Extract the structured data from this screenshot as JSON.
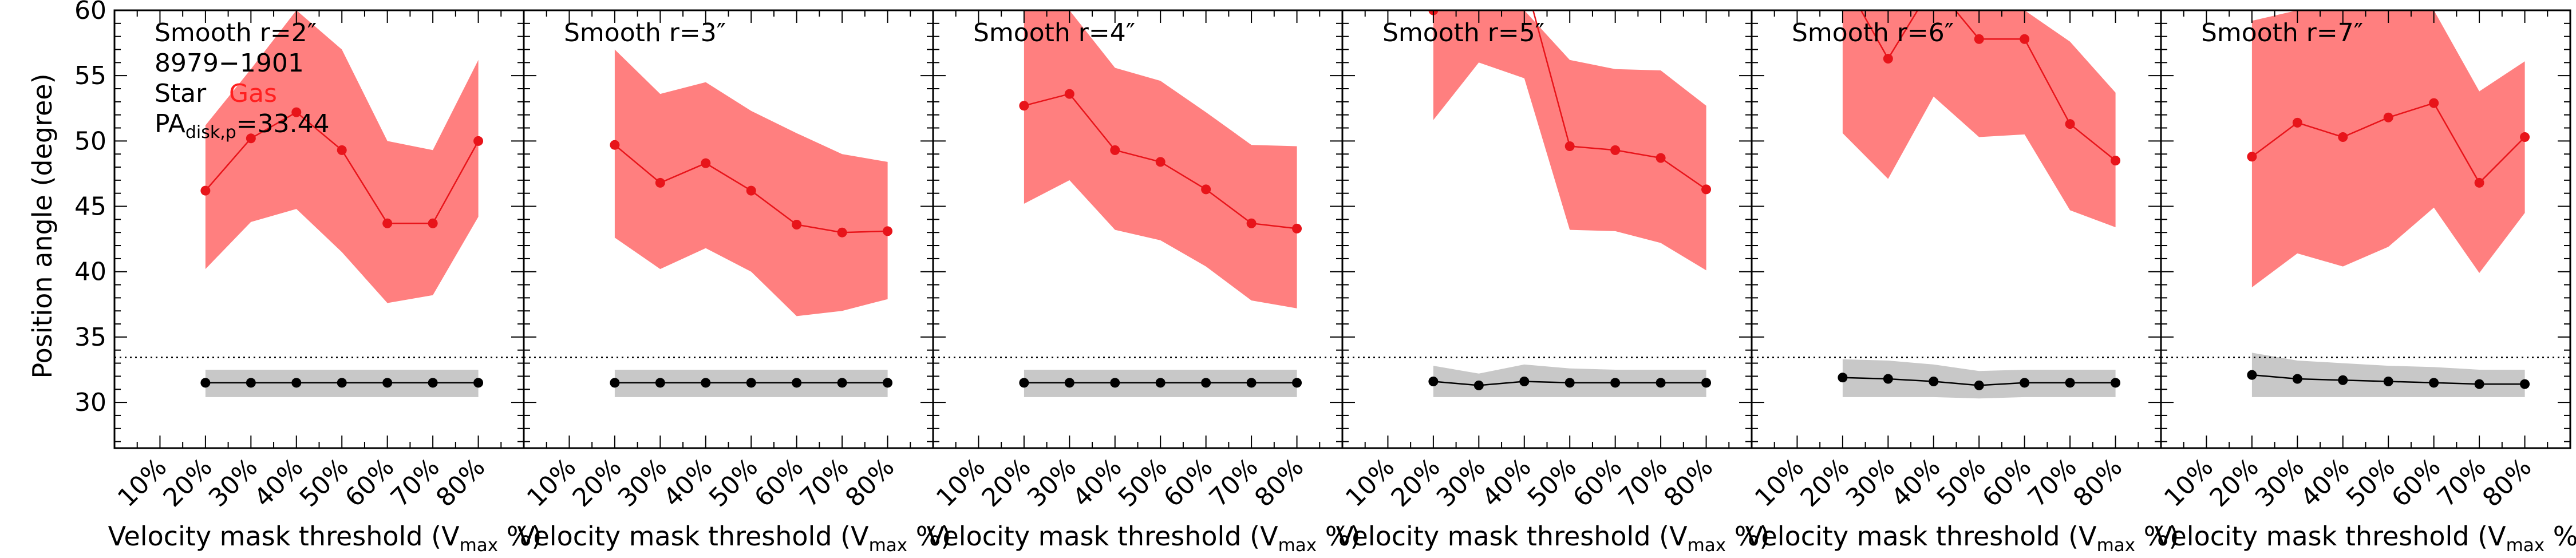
{
  "figure": {
    "ylabel": "Position angle (degree)",
    "ytick_labels": [
      "30",
      "35",
      "40",
      "45",
      "50",
      "55",
      "60"
    ],
    "xtick_labels": [
      "10%",
      "20%",
      "30%",
      "40%",
      "50%",
      "60%",
      "70%",
      "80%"
    ],
    "xlabel_prefix": "Velocity mask threshold (V",
    "xlabel_sub": "max",
    "xlabel_suffix": " %)",
    "legend": {
      "galaxy_id": "8979−1901",
      "star_label": "Star",
      "gas_label": "Gas",
      "pa_prefix": "PA",
      "pa_sub": "disk,p",
      "pa_value": "=33.44"
    }
  },
  "colors": {
    "gas_line": "#e8141a",
    "gas_band": "#ff7f7f",
    "star_line": "#000000",
    "star_band": "#c8c8c8",
    "reference_line": "#000000"
  },
  "chart_data": [
    {
      "type": "line",
      "title": "Smooth r=2″",
      "xlabel": "Velocity mask threshold (Vmax %)",
      "ylabel": "Position angle (degree)",
      "ylim": [
        26.5,
        60
      ],
      "xlim": [
        0,
        90
      ],
      "x": [
        20,
        30,
        40,
        50,
        60,
        70,
        80
      ],
      "reference_line": 33.44,
      "series": [
        {
          "name": "Gas",
          "values": [
            46.2,
            50.2,
            52.2,
            49.3,
            43.7,
            43.7,
            50.0
          ],
          "lower": [
            40.2,
            43.8,
            44.8,
            41.5,
            37.6,
            38.2,
            44.2
          ],
          "upper": [
            51.2,
            55.5,
            60.0,
            57.0,
            50.0,
            49.3,
            56.2
          ]
        },
        {
          "name": "Star",
          "values": [
            31.5,
            31.5,
            31.5,
            31.5,
            31.5,
            31.5,
            31.5
          ],
          "lower": [
            30.4,
            30.4,
            30.4,
            30.4,
            30.4,
            30.4,
            30.4
          ],
          "upper": [
            32.5,
            32.5,
            32.5,
            32.5,
            32.5,
            32.5,
            32.5
          ]
        }
      ]
    },
    {
      "type": "line",
      "title": "Smooth r=3″",
      "xlabel": "Velocity mask threshold (Vmax %)",
      "ylim": [
        26.5,
        60
      ],
      "xlim": [
        0,
        90
      ],
      "x": [
        20,
        30,
        40,
        50,
        60,
        70,
        80
      ],
      "reference_line": 33.44,
      "series": [
        {
          "name": "Gas",
          "values": [
            49.7,
            46.8,
            48.3,
            46.2,
            43.6,
            43.0,
            43.1
          ],
          "lower": [
            42.6,
            40.2,
            41.8,
            40.0,
            36.6,
            37.0,
            37.9
          ],
          "upper": [
            57.0,
            53.6,
            54.5,
            52.3,
            50.6,
            49.0,
            48.4
          ]
        },
        {
          "name": "Star",
          "values": [
            31.5,
            31.5,
            31.5,
            31.5,
            31.5,
            31.5,
            31.5
          ],
          "lower": [
            30.4,
            30.4,
            30.4,
            30.4,
            30.4,
            30.4,
            30.4
          ],
          "upper": [
            32.5,
            32.5,
            32.5,
            32.5,
            32.5,
            32.5,
            32.5
          ]
        }
      ]
    },
    {
      "type": "line",
      "title": "Smooth r=4″",
      "xlabel": "Velocity mask threshold (Vmax %)",
      "ylim": [
        26.5,
        60
      ],
      "xlim": [
        0,
        90
      ],
      "x": [
        20,
        30,
        40,
        50,
        60,
        70,
        80
      ],
      "reference_line": 33.44,
      "series": [
        {
          "name": "Gas",
          "values": [
            52.7,
            53.6,
            49.3,
            48.4,
            46.3,
            43.7,
            43.3
          ],
          "lower": [
            45.2,
            47.0,
            43.2,
            42.4,
            40.4,
            37.8,
            37.2
          ],
          "upper": [
            60.0,
            60.0,
            55.6,
            54.6,
            52.2,
            49.7,
            49.6
          ]
        },
        {
          "name": "Star",
          "values": [
            31.5,
            31.5,
            31.5,
            31.5,
            31.5,
            31.5,
            31.5
          ],
          "lower": [
            30.4,
            30.4,
            30.4,
            30.4,
            30.4,
            30.4,
            30.4
          ],
          "upper": [
            32.5,
            32.5,
            32.5,
            32.5,
            32.5,
            32.5,
            32.5
          ]
        }
      ]
    },
    {
      "type": "line",
      "title": "Smooth r=5″",
      "xlabel": "Velocity mask threshold (Vmax %)",
      "ylim": [
        26.5,
        60
      ],
      "xlim": [
        0,
        90
      ],
      "x": [
        20,
        30,
        40,
        50,
        60,
        70,
        80
      ],
      "reference_line": 33.44,
      "series": [
        {
          "name": "Gas",
          "values": [
            60.0,
            62.5,
            62.5,
            49.6,
            49.3,
            48.7,
            46.3
          ],
          "lower": [
            51.6,
            56.0,
            54.8,
            43.2,
            43.1,
            42.2,
            40.1
          ],
          "upper": [
            60.0,
            60.0,
            60.0,
            56.2,
            55.5,
            55.4,
            52.7
          ]
        },
        {
          "name": "Star",
          "values": [
            31.6,
            31.3,
            31.6,
            31.5,
            31.5,
            31.5,
            31.5
          ],
          "lower": [
            30.4,
            30.4,
            30.4,
            30.4,
            30.4,
            30.4,
            30.4
          ],
          "upper": [
            32.8,
            32.2,
            32.9,
            32.6,
            32.5,
            32.5,
            32.5
          ]
        }
      ]
    },
    {
      "type": "line",
      "title": "Smooth r=6″",
      "xlabel": "Velocity mask threshold (Vmax %)",
      "ylim": [
        26.5,
        60
      ],
      "xlim": [
        0,
        90
      ],
      "x": [
        20,
        30,
        40,
        50,
        60,
        70,
        80
      ],
      "reference_line": 33.44,
      "series": [
        {
          "name": "Gas",
          "values": [
            62.5,
            56.3,
            62.0,
            57.8,
            57.8,
            51.3,
            48.5
          ],
          "lower": [
            50.6,
            47.1,
            53.4,
            50.3,
            50.5,
            44.7,
            43.4
          ],
          "upper": [
            60.0,
            60.0,
            60.0,
            60.0,
            60.0,
            57.6,
            53.7
          ]
        },
        {
          "name": "Star",
          "values": [
            31.9,
            31.8,
            31.6,
            31.3,
            31.5,
            31.5,
            31.5
          ],
          "lower": [
            30.4,
            30.4,
            30.4,
            30.3,
            30.4,
            30.4,
            30.4
          ],
          "upper": [
            33.3,
            33.2,
            32.9,
            32.4,
            32.5,
            32.5,
            32.5
          ]
        }
      ]
    },
    {
      "type": "line",
      "title": "Smooth r=7″",
      "xlabel": "Velocity mask threshold (Vmax %)",
      "ylim": [
        26.5,
        60
      ],
      "xlim": [
        0,
        90
      ],
      "x": [
        20,
        30,
        40,
        50,
        60,
        70,
        80
      ],
      "reference_line": 33.44,
      "series": [
        {
          "name": "Gas",
          "values": [
            48.8,
            51.4,
            50.3,
            51.8,
            52.9,
            46.8,
            50.3
          ],
          "lower": [
            38.8,
            41.4,
            40.4,
            41.9,
            44.9,
            39.9,
            44.5
          ],
          "upper": [
            59.2,
            60.0,
            60.0,
            60.0,
            60.0,
            53.8,
            56.1
          ]
        },
        {
          "name": "Star",
          "values": [
            32.1,
            31.8,
            31.7,
            31.6,
            31.5,
            31.4,
            31.4
          ],
          "lower": [
            30.4,
            30.4,
            30.4,
            30.4,
            30.4,
            30.4,
            30.4
          ],
          "upper": [
            33.8,
            33.2,
            33.0,
            32.8,
            32.7,
            32.5,
            32.5
          ]
        }
      ]
    }
  ]
}
